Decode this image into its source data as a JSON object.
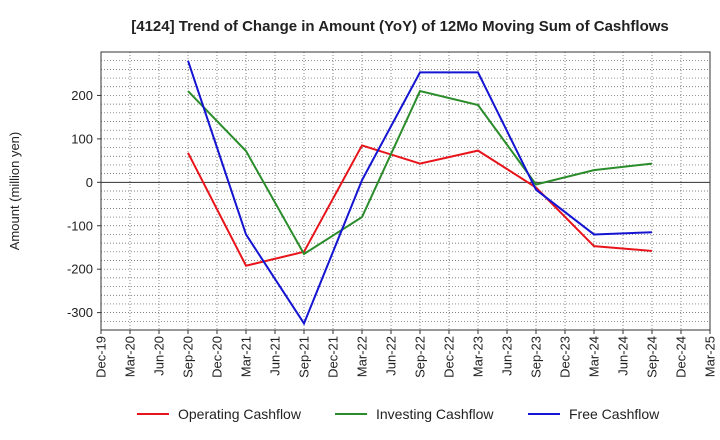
{
  "chart_data": {
    "type": "line",
    "title": "[4124]  Trend of Change in Amount (YoY) of 12Mo Moving Sum of Cashflows",
    "xlabel": "",
    "ylabel": "Amount (million yen)",
    "ylim": [
      -340,
      300
    ],
    "yticks": [
      -300,
      -200,
      -100,
      0,
      100,
      200
    ],
    "ytick_labels": [
      "-300",
      "-200",
      "-100",
      "0",
      "100",
      "200"
    ],
    "categories": [
      "Dec-19",
      "Mar-20",
      "Jun-20",
      "Sep-20",
      "Dec-20",
      "Mar-21",
      "Jun-21",
      "Sep-21",
      "Dec-21",
      "Mar-22",
      "Jun-22",
      "Sep-22",
      "Dec-22",
      "Mar-23",
      "Jun-23",
      "Sep-23",
      "Dec-23",
      "Mar-24",
      "Jun-24",
      "Sep-24",
      "Dec-24",
      "Mar-25"
    ],
    "grid": true,
    "legend_position": "bottom",
    "series": [
      {
        "name": "Operating Cashflow",
        "color": "#e8141b",
        "values": [
          null,
          null,
          null,
          68,
          null,
          -192,
          null,
          -160,
          null,
          85,
          null,
          43,
          null,
          73,
          null,
          -12,
          null,
          -147,
          null,
          -158,
          null,
          null
        ]
      },
      {
        "name": "Investing Cashflow",
        "color": "#2a8c2a",
        "values": [
          null,
          null,
          null,
          210,
          null,
          72,
          null,
          -165,
          null,
          -80,
          null,
          210,
          null,
          178,
          null,
          -5,
          null,
          28,
          null,
          43,
          null,
          null
        ]
      },
      {
        "name": "Free Cashflow",
        "color": "#1414d2",
        "values": [
          null,
          null,
          null,
          280,
          null,
          -120,
          null,
          -325,
          null,
          5,
          null,
          253,
          null,
          253,
          null,
          -17,
          null,
          -120,
          null,
          -115,
          null,
          null
        ]
      }
    ]
  }
}
